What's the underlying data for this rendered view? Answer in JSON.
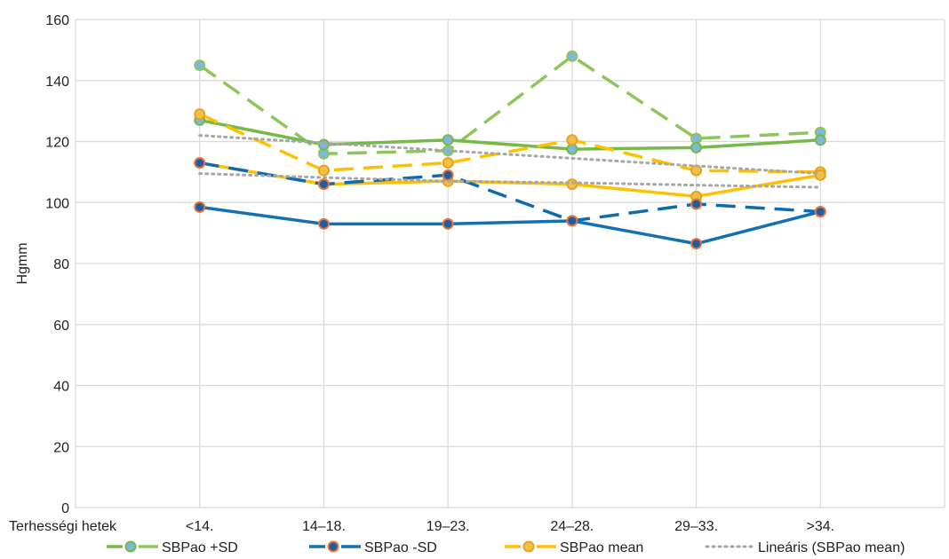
{
  "chart_data": {
    "type": "line",
    "title": "",
    "xlabel": "Terhességi hetek",
    "ylabel": "Hgmm",
    "categories": [
      "<14.",
      "14–18.",
      "19–23.",
      "24–28.",
      "29–33.",
      ">34."
    ],
    "ylim": [
      0,
      160
    ],
    "yticks": [
      0,
      20,
      40,
      60,
      80,
      100,
      120,
      140,
      160
    ],
    "grid": true,
    "legend_position": "bottom",
    "series": [
      {
        "name": "SBPao +SD (dashed)",
        "values": [
          145,
          116,
          117,
          148,
          121,
          123
        ],
        "color": "#8DC65A",
        "style": "dashed"
      },
      {
        "name": "SBPao +SD (solid)",
        "values": [
          127,
          119,
          120.5,
          117.5,
          118,
          120.5
        ],
        "color": "#76B947",
        "style": "solid"
      },
      {
        "name": "SBPao mean (dashed)",
        "values": [
          129,
          110.5,
          113,
          120.5,
          110.5,
          110
        ],
        "color": "#FFC000",
        "style": "dashed"
      },
      {
        "name": "SBPao mean (solid)",
        "values": [
          113,
          106,
          107,
          106,
          102,
          109
        ],
        "color": "#FFC000",
        "style": "solid"
      },
      {
        "name": "SBPao -SD (dashed)",
        "values": [
          113,
          106,
          109,
          94,
          99.5,
          97
        ],
        "color": "#0E6BB0",
        "style": "dashed"
      },
      {
        "name": "SBPao -SD (solid)",
        "values": [
          98.5,
          93,
          93,
          94,
          86.5,
          97
        ],
        "color": "#1470B5",
        "style": "solid"
      },
      {
        "name": "Lineáris trend 1",
        "values": [
          122,
          119.5,
          117,
          114.5,
          112,
          109.5
        ],
        "color": "#A6A6A6",
        "style": "dotted"
      },
      {
        "name": "Lineáris trend 2",
        "values": [
          109.5,
          108.2,
          107,
          106.5,
          105.7,
          105
        ],
        "color": "#A6A6A6",
        "style": "dotted"
      }
    ],
    "legend": [
      {
        "label": "SBPao  +SD",
        "color": "#76B947",
        "dash_color": "#8DC65A",
        "marker": true,
        "marker_stroke": "#7FB3D5"
      },
      {
        "label": "SBPao  -SD",
        "color": "#1470B5",
        "dash_color": "#1470B5",
        "marker": true,
        "marker_stroke": "#E8733A"
      },
      {
        "label": "SBPao mean",
        "color": "#FFC000",
        "dash_color": "#FFC000",
        "marker": true,
        "marker_stroke": "#E0B050"
      },
      {
        "label": "Lineáris (SBPao mean)",
        "color": "#A6A6A6",
        "dash_color": "#A6A6A6",
        "marker": false,
        "marker_stroke": ""
      }
    ]
  }
}
